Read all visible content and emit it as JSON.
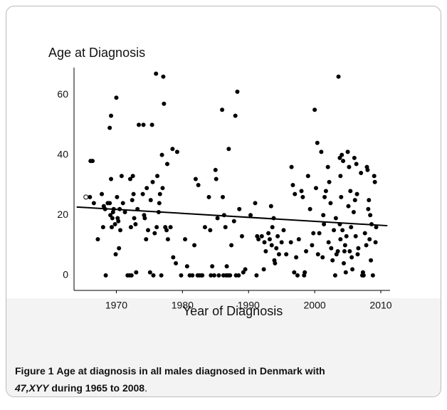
{
  "chart_data": {
    "type": "scatter",
    "ylabel": "Age at Diagnosis",
    "xlabel": "Year of Diagnosis",
    "xlim": [
      1963.6,
      2011.4
    ],
    "xticks": [
      1970,
      1980,
      1990,
      2000,
      2010
    ],
    "ylim": [
      -5,
      69
    ],
    "yticks": [
      0,
      20,
      40,
      60
    ],
    "series": [
      {
        "color": "#000000",
        "marker": "filled",
        "x": [
          1966.1,
          1966.4,
          1966.0,
          1966.6,
          1967.2,
          1967.8,
          1968.1,
          1968.3,
          1968.0,
          1968.4,
          1968.7,
          1969.0,
          1969.2,
          1969.1,
          1969.4,
          1969.6,
          1969.0,
          1969.8,
          1969.5,
          1969.3,
          1969.2,
          1970.0,
          1970.2,
          1970.5,
          1969.9,
          1970.1,
          1970.3,
          1970.6,
          1970.4,
          1970.8,
          1971.0,
          1971.3,
          1971.7,
          1972.0,
          1972.3,
          1972.1,
          1972.5,
          1972.4,
          1972.7,
          1972.2,
          1972.6,
          1972.9,
          1973.0,
          1973.4,
          1973.2,
          1974.1,
          1974.0,
          1974.3,
          1974.5,
          1974.8,
          1974.2,
          1974.6,
          1975.1,
          1975.4,
          1975.2,
          1975.6,
          1975.8,
          1975.5,
          1976.0,
          1976.2,
          1976.4,
          1976.1,
          1976.6,
          1976.8,
          1976.5,
          1977.1,
          1977.2,
          1976.9,
          1977.0,
          1977.4,
          1977.6,
          1977.8,
          1978.5,
          1977.7,
          1978.2,
          1978.6,
          1979.2,
          1979.0,
          1979.8,
          1980.4,
          1980.7,
          1981.1,
          1981.5,
          1981.8,
          1982.0,
          1982.3,
          1982.6,
          1982.4,
          1982.9,
          1983.4,
          1983.0,
          1984.0,
          1984.2,
          1984.5,
          1984.3,
          1984.8,
          1985.0,
          1985.3,
          1985.5,
          1985.1,
          1986.0,
          1986.1,
          1986.3,
          1986.5,
          1986.7,
          1986.2,
          1986.6,
          1986.9,
          1987.0,
          1987.4,
          1987.2,
          1987.8,
          1988.0,
          1988.3,
          1988.5,
          1988.6,
          1988.1,
          1989.0,
          1989.2,
          1989.5,
          1990.3,
          1991.0,
          1991.3,
          1991.5,
          1991.2,
          1992.0,
          1992.4,
          1992.6,
          1992.3,
          1993.0,
          1993.2,
          1993.5,
          1993.6,
          1993.8,
          1993.4,
          1993.9,
          1994.2,
          1994.6,
          1994.4,
          1994.0,
          1995.0,
          1995.3,
          1995.7,
          1996.5,
          1996.7,
          1996.4,
          1996.9,
          1997.0,
          1997.2,
          1997.4,
          1997.6,
          1998.0,
          1998.2,
          1998.4,
          1998.5,
          1998.7,
          1999.0,
          1999.3,
          1999.6,
          1999.8,
          2000.0,
          2000.4,
          2000.2,
          2000.5,
          2000.7,
          2001.0,
          2001.3,
          2001.2,
          2001.5,
          2001.4,
          2001.7,
          2002.0,
          2002.2,
          2002.4,
          2002.1,
          2002.5,
          2002.7,
          2002.9,
          2003.6,
          2003.2,
          2003.5,
          2003.1,
          2003.3,
          2003.8,
          2003.9,
          2003.8,
          2004.1,
          2003.9,
          2004.0,
          2004.3,
          2004.2,
          2004.5,
          2004.6,
          2004.4,
          2004.7,
          2004.8,
          2005.0,
          2005.2,
          2005.4,
          2005.1,
          2005.5,
          2005.3,
          2005.6,
          2005.7,
          2005.9,
          2006.0,
          2006.3,
          2006.1,
          2006.4,
          2006.2,
          2006.6,
          2006.5,
          2007.0,
          2007.2,
          2007.4,
          2007.3,
          2007.6,
          2007.8,
          2008.0,
          2008.2,
          2008.4,
          2008.1,
          2008.6,
          2008.3,
          2008.5,
          2008.8,
          2007.9,
          2009.0,
          2009.1,
          2009.2,
          2009.3
        ],
        "values": [
          38,
          38,
          26,
          24,
          12,
          27,
          23,
          22,
          16,
          0,
          24,
          49,
          53,
          20,
          19,
          22,
          24,
          17,
          21,
          16,
          32,
          59,
          19,
          22,
          7,
          26,
          18,
          15,
          9,
          33,
          24,
          21,
          0,
          0,
          0,
          32,
          33,
          25,
          19,
          16,
          27,
          17,
          1,
          50,
          22,
          50,
          27,
          19,
          12,
          15,
          20,
          29,
          1,
          50,
          25,
          0,
          14,
          31,
          67,
          33,
          21,
          16,
          27,
          0,
          24,
          66,
          57,
          40,
          29,
          16,
          15,
          12,
          42,
          37,
          16,
          6,
          41,
          4,
          0,
          12,
          3,
          0,
          0,
          10,
          32,
          0,
          0,
          30,
          0,
          16,
          0,
          26,
          15,
          3,
          0,
          0,
          35,
          19,
          0,
          32,
          55,
          26,
          20,
          16,
          3,
          0,
          0,
          0,
          42,
          10,
          0,
          18,
          53,
          61,
          0,
          22,
          0,
          13,
          1,
          2,
          20,
          24,
          13,
          12,
          0,
          13,
          11,
          8,
          2,
          14,
          12,
          10,
          16,
          19,
          23,
          5,
          9,
          7,
          13,
          4,
          11,
          15,
          7,
          36,
          30,
          11,
          1,
          27,
          6,
          0,
          12,
          28,
          26,
          0,
          1,
          8,
          33,
          22,
          10,
          14,
          55,
          44,
          29,
          7,
          14,
          41,
          20,
          6,
          26,
          17,
          28,
          36,
          31,
          24,
          11,
          9,
          5,
          15,
          66,
          19,
          8,
          0,
          7,
          17,
          12,
          39,
          40,
          33,
          26,
          38,
          15,
          8,
          10,
          4,
          1,
          13,
          41,
          36,
          28,
          23,
          16,
          8,
          6,
          2,
          21,
          39,
          37,
          25,
          27,
          13,
          9,
          7,
          34,
          0,
          0,
          1,
          14,
          10,
          35,
          25,
          20,
          22,
          17,
          12,
          5,
          0,
          36,
          33,
          31,
          11,
          16
        ]
      },
      {
        "color": "#000000",
        "marker": "open",
        "x": [
          1965.4
        ],
        "values": [
          26
        ]
      }
    ],
    "trend": {
      "color": "#000000",
      "x": [
        1964,
        2011
      ],
      "values": [
        22.7,
        16.5
      ]
    }
  },
  "caption": {
    "label": "Figure 1",
    "text_1": "Age at diagnosis in all males diagnosed in Denmark with",
    "italic": "47,XYY",
    "text_2": "during 1965 to 2008",
    "end": "."
  }
}
